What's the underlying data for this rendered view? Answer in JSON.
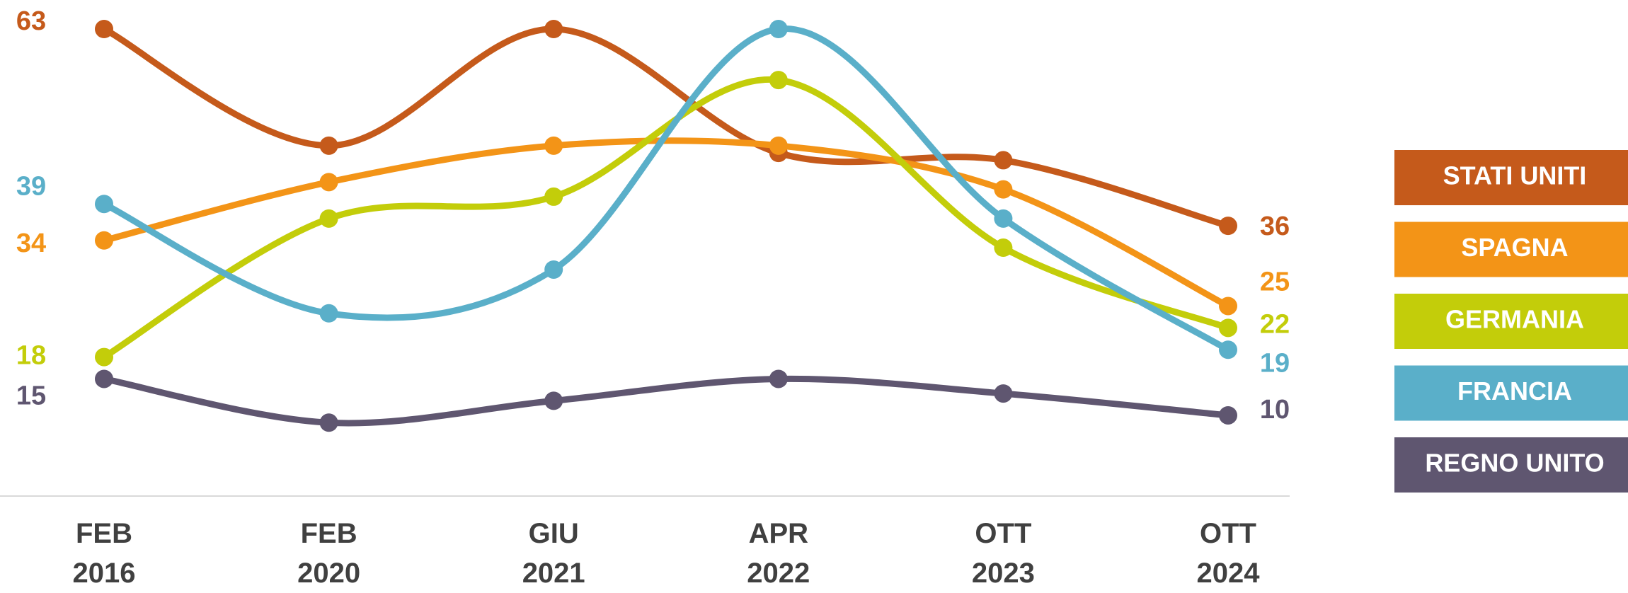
{
  "chart_data": {
    "type": "line",
    "categories": [
      "FEB\n2016",
      "FEB\n2020",
      "GIU\n2021",
      "APR\n2022",
      "OTT\n2023",
      "OTT\n2024"
    ],
    "series": [
      {
        "name": "STATI UNITI",
        "color": "#c55a1b",
        "values": [
          63,
          47,
          63,
          46,
          45,
          36
        ]
      },
      {
        "name": "SPAGNA",
        "color": "#f39417",
        "values": [
          34,
          42,
          47,
          47,
          41,
          25
        ]
      },
      {
        "name": "GERMANIA",
        "color": "#c3cd0a",
        "values": [
          18,
          37,
          40,
          56,
          33,
          22
        ]
      },
      {
        "name": "FRANCIA",
        "color": "#5aafc9",
        "values": [
          39,
          24,
          30,
          63,
          37,
          19
        ]
      },
      {
        "name": "REGNO UNITO",
        "color": "#5f5670",
        "values": [
          15,
          9,
          12,
          15,
          13,
          10
        ]
      }
    ],
    "ylim": [
      0,
      63
    ],
    "legend": "right"
  }
}
